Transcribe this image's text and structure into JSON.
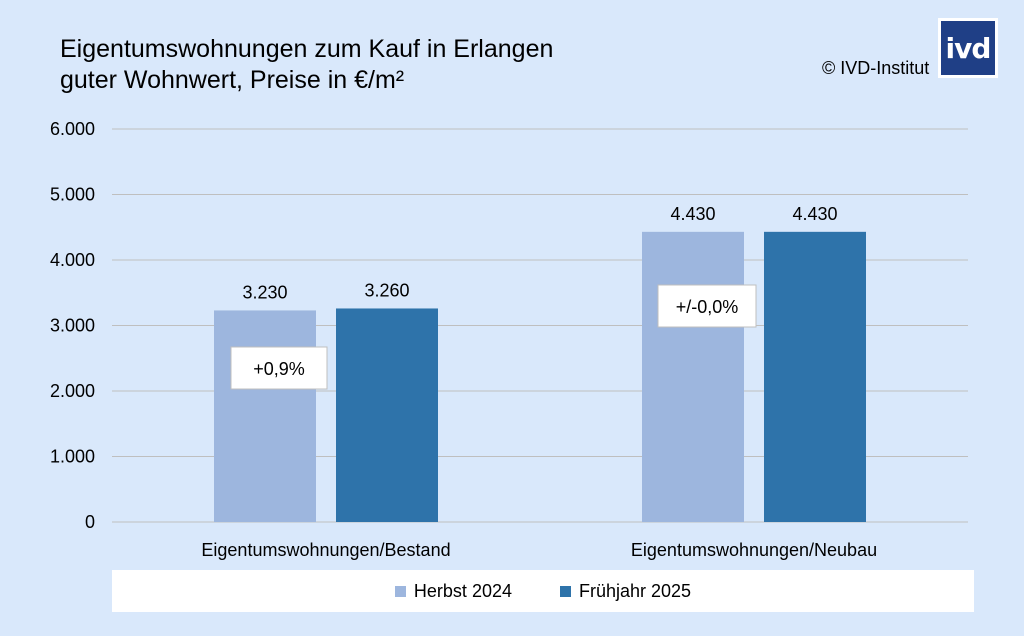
{
  "header": {
    "title_line1": "Eigentumswohnungen zum Kauf in Erlangen",
    "title_line2": "guter Wohnwert, Preise in €/m²",
    "copyright": "© IVD-Institut",
    "logo_text": "ivd"
  },
  "colors": {
    "background": "#d9e8fb",
    "series1": "#9db6de",
    "series2": "#2e73aa",
    "gridline": "#bfbfbf",
    "logo": "#1f3f86"
  },
  "chart_data": {
    "type": "bar",
    "categories": [
      "Eigentumswohnungen/Bestand",
      "Eigentumswohnungen/Neubau"
    ],
    "series": [
      {
        "name": "Herbst 2024",
        "values": [
          3230,
          4430
        ],
        "labels": [
          "3.230",
          "4.430"
        ]
      },
      {
        "name": "Frühjahr 2025",
        "values": [
          3260,
          4430
        ],
        "labels": [
          "3.260",
          "4.430"
        ]
      }
    ],
    "ylim": [
      0,
      6000
    ],
    "yticks": [
      0,
      1000,
      2000,
      3000,
      4000,
      5000,
      6000
    ],
    "ytick_labels": [
      "0",
      "1.000",
      "2.000",
      "3.000",
      "4.000",
      "5.000",
      "6.000"
    ],
    "annotations": [
      "+0,9%",
      "+/-0,0%"
    ],
    "grid": true,
    "legend_position": "bottom"
  }
}
